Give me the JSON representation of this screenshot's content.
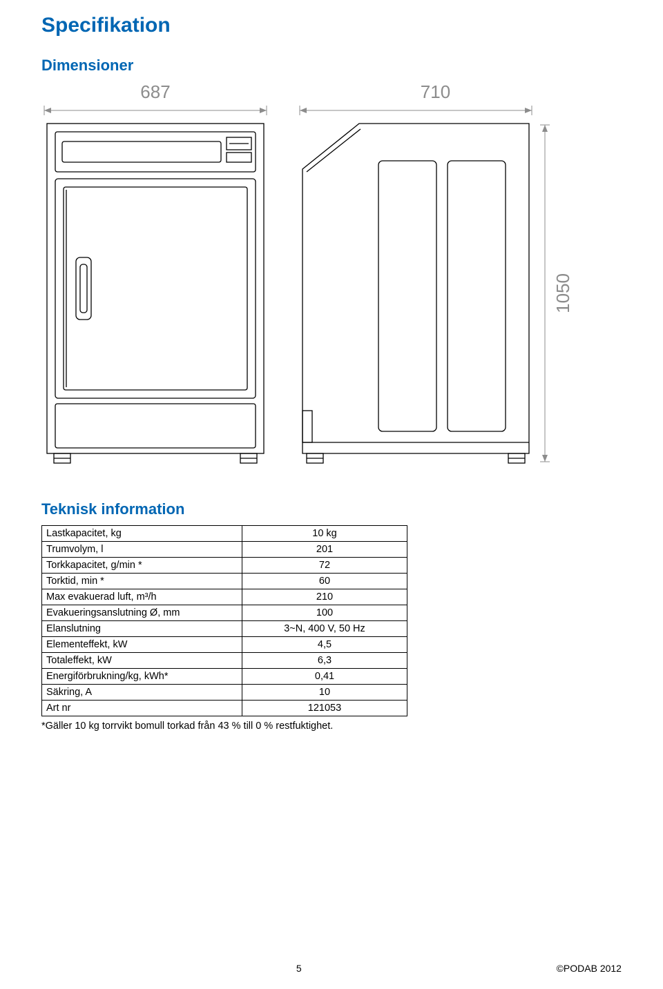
{
  "title": "Specifikation",
  "dimensions_heading": "Dimensioner",
  "tech_heading": "Teknisk information",
  "dims": {
    "front_width": "687",
    "side_depth": "710",
    "height": "1050"
  },
  "drawing_style": {
    "stroke": "#000000",
    "stroke_width": 1.3,
    "dim_color": "#8c8c8c",
    "dim_stroke_width": 1,
    "dim_fontsize": 26
  },
  "table": {
    "rows": [
      {
        "label": "Lastkapacitet,  kg",
        "value": "10 kg"
      },
      {
        "label": "Trumvolym, l",
        "value": "201"
      },
      {
        "label": "Torkkapacitet, g/min *",
        "value": "72"
      },
      {
        "label": "Torktid, min *",
        "value": "60"
      },
      {
        "label": "Max evakuerad luft, m³/h",
        "value": "210"
      },
      {
        "label": "Evakueringsanslutning Ø, mm",
        "value": "100"
      },
      {
        "label": "Elanslutning",
        "value": "3~N, 400 V, 50 Hz"
      },
      {
        "label": "Elementeffekt, kW",
        "value": "4,5"
      },
      {
        "label": "Totaleffekt, kW",
        "value": "6,3"
      },
      {
        "label": "Energiförbrukning/kg, kWh*",
        "value": "0,41"
      },
      {
        "label": "Säkring, A",
        "value": "10"
      },
      {
        "label": "Art nr",
        "value": "121053"
      }
    ],
    "footnote": "*Gäller 10 kg torrvikt bomull torkad från 43 % till 0 % restfuktighet."
  },
  "footer": {
    "page": "5",
    "copyright": "©PODAB 2012"
  }
}
